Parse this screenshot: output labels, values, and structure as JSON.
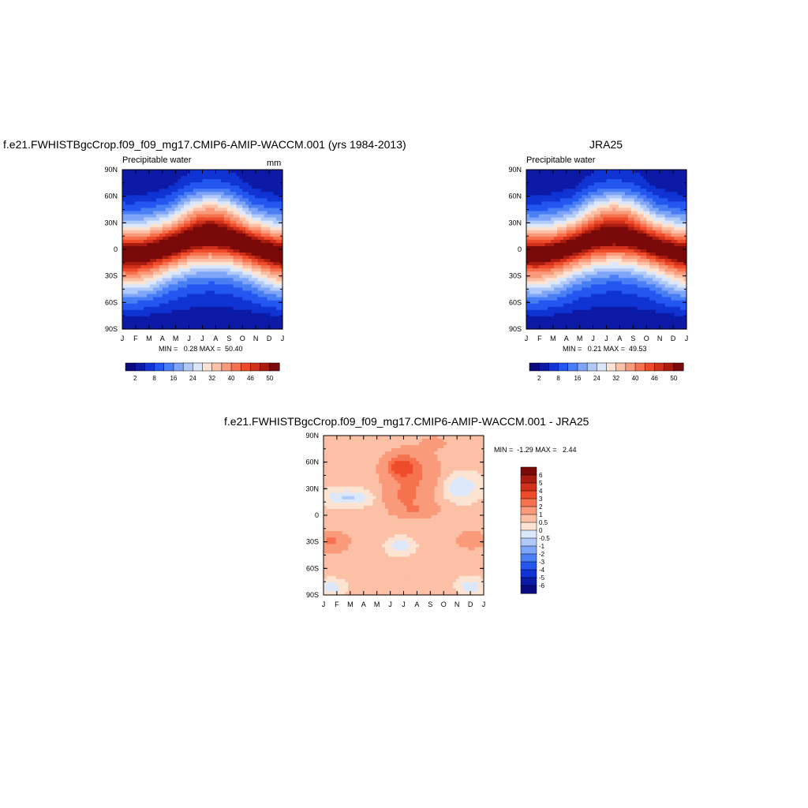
{
  "panels": {
    "model": {
      "title": "f.e21.FWHISTBgcCrop.f09_f09_mg17.CMIP6-AMIP-WACCM.001 (yrs 1984-2013)",
      "left_string": "Precipitable water",
      "right_string": "mm",
      "minmax": "MIN =   0.28 MAX =  50.40"
    },
    "obs": {
      "title": "JRA25",
      "left_string": "Precipitable water",
      "minmax": "MIN =   0.21 MAX =  49.53"
    },
    "diff": {
      "title": "f.e21.FWHISTBgcCrop.f09_f09_mg17.CMIP6-AMIP-WACCM.001 - JRA25",
      "minmax": "MIN =  -1.29 MAX =   2.44"
    }
  },
  "chart_data": [
    {
      "type": "heatmap",
      "name": "model",
      "title": "f.e21.FWHISTBgcCrop.f09_f09_mg17.CMIP6-AMIP-WACCM.001 (yrs 1984-2013)",
      "x_ticks": [
        "J",
        "F",
        "M",
        "A",
        "M",
        "J",
        "J",
        "A",
        "S",
        "O",
        "N",
        "D",
        "J"
      ],
      "y_ticks": [
        "90S",
        "60S",
        "30S",
        "0",
        "30N",
        "60N",
        "90N"
      ],
      "ylim": [
        -90,
        90
      ],
      "colorbar_labels": [
        "2",
        "8",
        "16",
        "24",
        "32",
        "40",
        "46",
        "50"
      ],
      "colorbar_colors": [
        "#0a0a80",
        "#0c1aa6",
        "#1034d4",
        "#2457f0",
        "#4a7ef5",
        "#7ea5f7",
        "#b0c9f7",
        "#dbe8fc",
        "#fde3d2",
        "#fbc0a6",
        "#f99a7a",
        "#f6724f",
        "#ee4b2b",
        "#d1301a",
        "#a81d10",
        "#7a0a0a"
      ],
      "min": 0.28,
      "max": 50.4,
      "max_peak_lat": 8,
      "min_value_region": "90S"
    },
    {
      "type": "heatmap",
      "name": "obs",
      "title": "JRA25",
      "x_ticks": [
        "J",
        "F",
        "M",
        "A",
        "M",
        "J",
        "J",
        "A",
        "S",
        "O",
        "N",
        "D",
        "J"
      ],
      "y_ticks": [
        "90S",
        "60S",
        "30S",
        "0",
        "30N",
        "60N",
        "90N"
      ],
      "ylim": [
        -90,
        90
      ],
      "colorbar_labels": [
        "2",
        "8",
        "16",
        "24",
        "32",
        "40",
        "46",
        "50"
      ],
      "colorbar_colors": [
        "#0a0a80",
        "#0c1aa6",
        "#1034d4",
        "#2457f0",
        "#4a7ef5",
        "#7ea5f7",
        "#b0c9f7",
        "#dbe8fc",
        "#fde3d2",
        "#fbc0a6",
        "#f99a7a",
        "#f6724f",
        "#ee4b2b",
        "#d1301a",
        "#a81d10",
        "#7a0a0a"
      ],
      "min": 0.21,
      "max": 49.53
    },
    {
      "type": "heatmap",
      "name": "diff",
      "title": "f.e21.FWHISTBgcCrop.f09_f09_mg17.CMIP6-AMIP-WACCM.001 - JRA25",
      "x_ticks": [
        "J",
        "F",
        "M",
        "A",
        "M",
        "J",
        "J",
        "A",
        "S",
        "O",
        "N",
        "D",
        "J"
      ],
      "y_ticks": [
        "90S",
        "60S",
        "30S",
        "0",
        "30N",
        "60N",
        "90N"
      ],
      "ylim": [
        -90,
        90
      ],
      "colorbar_labels": [
        "6",
        "5",
        "4",
        "3",
        "2",
        "1",
        "0.5",
        "0",
        "-0.5",
        "-1",
        "-2",
        "-3",
        "-4",
        "-5",
        "-6"
      ],
      "colorbar_colors": [
        "#7a0a0a",
        "#a81d10",
        "#d1301a",
        "#ee4b2b",
        "#f6724f",
        "#f99a7a",
        "#fbc0a6",
        "#fde3d2",
        "#dbe8fc",
        "#b0c9f7",
        "#7ea5f7",
        "#4a7ef5",
        "#2457f0",
        "#1034d4",
        "#0c1aa6",
        "#0a0a80"
      ],
      "min": -1.29,
      "max": 2.44
    }
  ]
}
